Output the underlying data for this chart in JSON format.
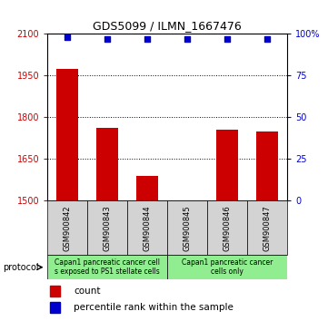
{
  "title": "GDS5099 / ILMN_1667476",
  "samples": [
    "GSM900842",
    "GSM900843",
    "GSM900844",
    "GSM900845",
    "GSM900846",
    "GSM900847"
  ],
  "counts": [
    1975,
    1760,
    1590,
    1502,
    1755,
    1750
  ],
  "percentiles": [
    98,
    97,
    97,
    97,
    97,
    97
  ],
  "ylim_left": [
    1500,
    2100
  ],
  "ylim_right": [
    0,
    100
  ],
  "yticks_left": [
    1500,
    1650,
    1800,
    1950,
    2100
  ],
  "yticks_right": [
    0,
    25,
    50,
    75,
    100
  ],
  "ytick_labels_right": [
    "0",
    "25",
    "50",
    "75",
    "100%"
  ],
  "bar_color": "#cc0000",
  "dot_color": "#0000cc",
  "protocol_group1_label": "Capan1 pancreatic cancer cell\ns exposed to PS1 stellate cells",
  "protocol_group2_label": "Capan1 pancreatic cancer\ncells only",
  "legend_count_label": "count",
  "legend_percentile_label": "percentile rank within the sample",
  "sample_box_color": "#d3d3d3",
  "protocol_color": "#90ee90",
  "plot_bg": "#ffffff",
  "title_fontsize": 9,
  "tick_fontsize": 7,
  "sample_fontsize": 6,
  "protocol_fontsize": 5.5,
  "legend_fontsize": 7.5
}
